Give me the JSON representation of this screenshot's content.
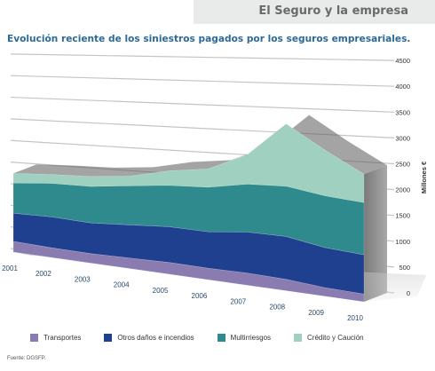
{
  "header": {
    "section_title": "El Seguro y la empresa"
  },
  "chart_data": {
    "type": "area",
    "stacked": true,
    "title": "Evolución reciente de los siniestros pagados por los seguros empresariales.",
    "xlabel": "",
    "ylabel": "Millones €",
    "x": [
      "2001",
      "2002",
      "2003",
      "2004",
      "2005",
      "2006",
      "2007",
      "2008",
      "2009",
      "2010"
    ],
    "ylim": [
      0,
      4500
    ],
    "yticks": [
      "0",
      "500",
      "1000",
      "1500",
      "2000",
      "2500",
      "3000",
      "3500",
      "4000",
      "4500"
    ],
    "grid": true,
    "legend_position": "bottom",
    "series": [
      {
        "name": "Transportes",
        "color": "#8a7cb0",
        "values": [
          250,
          220,
          210,
          230,
          250,
          240,
          250,
          230,
          170,
          150
        ]
      },
      {
        "name": "Otros daños e incendios",
        "color": "#1f3f8f",
        "values": [
          650,
          700,
          680,
          720,
          760,
          760,
          840,
          860,
          790,
          760
        ]
      },
      {
        "name": "Multirriesgos",
        "color": "#2e8a8c",
        "values": [
          700,
          760,
          810,
          850,
          880,
          930,
          980,
          1010,
          1020,
          1010
        ]
      },
      {
        "name": "Crédito y Caución",
        "color": "#9fd0c0",
        "values": [
          220,
          200,
          220,
          210,
          310,
          380,
          600,
          1250,
          900,
          550
        ]
      }
    ]
  },
  "legend": {
    "items": [
      {
        "label": "Transportes",
        "color": "#8a7cb0"
      },
      {
        "label": "Otros daños e incendios",
        "color": "#1f3f8f"
      },
      {
        "label": "Multirriesgos",
        "color": "#2e8a8c"
      },
      {
        "label": "Crédito y Caución",
        "color": "#9fd0c0"
      }
    ]
  },
  "footer": {
    "source": "Fuente: DGSFP."
  }
}
